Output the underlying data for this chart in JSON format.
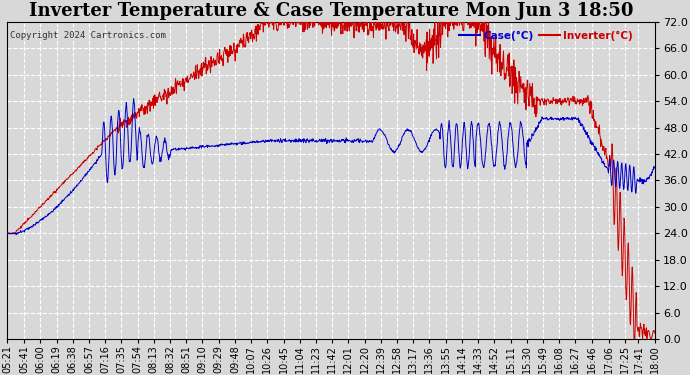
{
  "title": "Inverter Temperature & Case Temperature Mon Jun 3 18:50",
  "copyright": "Copyright 2024 Cartronics.com",
  "legend_case": "Case(°C)",
  "legend_inverter": "Inverter(°C)",
  "yticks": [
    0.0,
    6.0,
    12.0,
    18.0,
    24.0,
    30.0,
    36.0,
    42.0,
    48.0,
    54.0,
    60.0,
    66.0,
    72.0
  ],
  "ylim": [
    0.0,
    72.0
  ],
  "bg_color": "#d8d8d8",
  "plot_bg_color": "#d8d8d8",
  "grid_color": "#ffffff",
  "inverter_color": "#cc0000",
  "case_color": "#0000cc",
  "title_fontsize": 13,
  "tick_fontsize": 7,
  "xtick_labels": [
    "05:21",
    "05:41",
    "06:00",
    "06:19",
    "06:38",
    "06:57",
    "07:16",
    "07:35",
    "07:54",
    "08:13",
    "08:32",
    "08:51",
    "09:10",
    "09:29",
    "09:48",
    "10:07",
    "10:26",
    "10:45",
    "11:04",
    "11:23",
    "11:42",
    "12:01",
    "12:20",
    "12:39",
    "12:58",
    "13:17",
    "13:36",
    "13:55",
    "14:14",
    "14:33",
    "14:52",
    "15:11",
    "15:30",
    "15:49",
    "16:08",
    "16:27",
    "16:46",
    "17:06",
    "17:25",
    "17:41",
    "18:00"
  ]
}
